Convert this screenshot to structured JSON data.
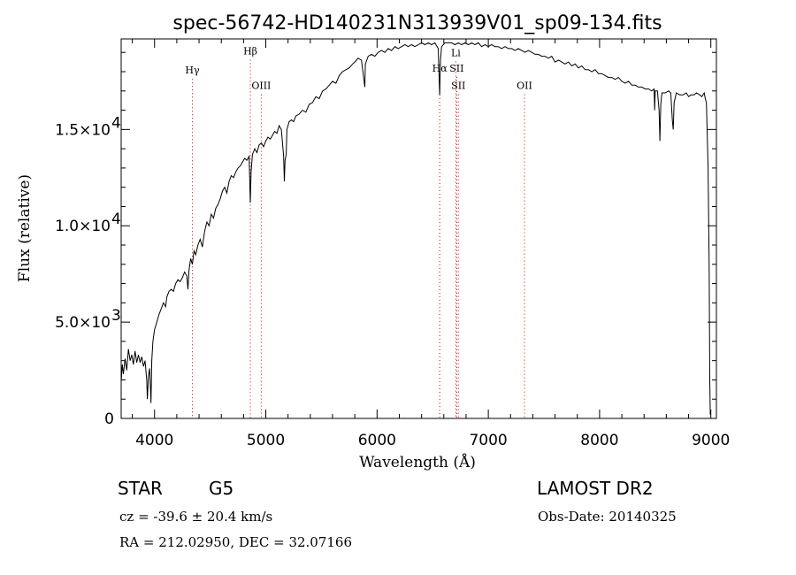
{
  "chart_data": {
    "type": "line",
    "title": "spec-56742-HD140231N313939V01_sp09-134.fits",
    "xlabel": "Wavelength (Å)",
    "ylabel": "Flux (relative)",
    "xlim": [
      3700,
      9050
    ],
    "ylim": [
      0,
      19700
    ],
    "xticks": [
      {
        "value": 4000,
        "label": "4000"
      },
      {
        "value": 5000,
        "label": "5000"
      },
      {
        "value": 6000,
        "label": "6000"
      },
      {
        "value": 7000,
        "label": "7000"
      },
      {
        "value": 8000,
        "label": "8000"
      },
      {
        "value": 9000,
        "label": "9000"
      }
    ],
    "yticks": [
      {
        "value": 0,
        "mantissa": "0",
        "exponent": ""
      },
      {
        "value": 5000,
        "mantissa": "5.0×10",
        "exponent": "3"
      },
      {
        "value": 10000,
        "mantissa": "1.0×10",
        "exponent": "4"
      },
      {
        "value": 15000,
        "mantissa": "1.5×10",
        "exponent": "4"
      }
    ],
    "spectral_lines": [
      {
        "label": "Hγ",
        "wavelength": 4340,
        "level": 17900,
        "color": "#cc0000"
      },
      {
        "label": "Hβ",
        "wavelength": 4861,
        "level": 18900,
        "color": "#cc0000"
      },
      {
        "label": "OIII",
        "wavelength": 4959,
        "level": 17100,
        "color": "#cc0000"
      },
      {
        "label": "Hα",
        "wavelength": 6563,
        "level": 18000,
        "color": "#cc0000"
      },
      {
        "label": "Li",
        "wavelength": 6708,
        "level": 18800,
        "color": "#cc0000"
      },
      {
        "label": "SII",
        "wavelength": 6716,
        "level": 18000,
        "color": "#cc0000"
      },
      {
        "label": "SII",
        "wavelength": 6731,
        "level": 17100,
        "color": "#cc0000"
      },
      {
        "label": "OII",
        "wavelength": 7325,
        "level": 17100,
        "color": "#cc0000"
      }
    ],
    "series": [
      {
        "points": [
          [
            3700,
            1900
          ],
          [
            3710,
            2800
          ],
          [
            3720,
            2300
          ],
          [
            3735,
            3100
          ],
          [
            3750,
            2500
          ],
          [
            3765,
            3600
          ],
          [
            3780,
            3000
          ],
          [
            3795,
            3300
          ],
          [
            3810,
            2800
          ],
          [
            3825,
            3500
          ],
          [
            3840,
            2900
          ],
          [
            3855,
            3300
          ],
          [
            3870,
            2900
          ],
          [
            3885,
            3200
          ],
          [
            3900,
            2700
          ],
          [
            3915,
            3000
          ],
          [
            3930,
            2000
          ],
          [
            3935,
            1000
          ],
          [
            3945,
            2200
          ],
          [
            3955,
            2600
          ],
          [
            3965,
            1400
          ],
          [
            3968,
            800
          ],
          [
            3975,
            3000
          ],
          [
            3985,
            4000
          ],
          [
            4000,
            4600
          ],
          [
            4020,
            5000
          ],
          [
            4040,
            5400
          ],
          [
            4060,
            5700
          ],
          [
            4080,
            6000
          ],
          [
            4100,
            5800
          ],
          [
            4110,
            6300
          ],
          [
            4130,
            6600
          ],
          [
            4150,
            6700
          ],
          [
            4170,
            6600
          ],
          [
            4190,
            7000
          ],
          [
            4210,
            7200
          ],
          [
            4230,
            7100
          ],
          [
            4250,
            7300
          ],
          [
            4270,
            7600
          ],
          [
            4290,
            7400
          ],
          [
            4300,
            6700
          ],
          [
            4310,
            7700
          ],
          [
            4325,
            8300
          ],
          [
            4340,
            8000
          ],
          [
            4355,
            8700
          ],
          [
            4370,
            8500
          ],
          [
            4390,
            9000
          ],
          [
            4410,
            9300
          ],
          [
            4430,
            8900
          ],
          [
            4450,
            9700
          ],
          [
            4470,
            10200
          ],
          [
            4490,
            10000
          ],
          [
            4510,
            10600
          ],
          [
            4530,
            10400
          ],
          [
            4550,
            10900
          ],
          [
            4570,
            11100
          ],
          [
            4590,
            11400
          ],
          [
            4610,
            11800
          ],
          [
            4630,
            12000
          ],
          [
            4650,
            11700
          ],
          [
            4670,
            12300
          ],
          [
            4690,
            12600
          ],
          [
            4710,
            12500
          ],
          [
            4730,
            12800
          ],
          [
            4750,
            13000
          ],
          [
            4770,
            13100
          ],
          [
            4790,
            13300
          ],
          [
            4810,
            13500
          ],
          [
            4830,
            13400
          ],
          [
            4850,
            13600
          ],
          [
            4855,
            12500
          ],
          [
            4861,
            11200
          ],
          [
            4868,
            12800
          ],
          [
            4880,
            13700
          ],
          [
            4900,
            14000
          ],
          [
            4920,
            13800
          ],
          [
            4940,
            14200
          ],
          [
            4960,
            14300
          ],
          [
            4980,
            14100
          ],
          [
            5000,
            14400
          ],
          [
            5020,
            14600
          ],
          [
            5040,
            14500
          ],
          [
            5060,
            14700
          ],
          [
            5080,
            14900
          ],
          [
            5100,
            14800
          ],
          [
            5120,
            15200
          ],
          [
            5140,
            15000
          ],
          [
            5160,
            13600
          ],
          [
            5167,
            12300
          ],
          [
            5173,
            13400
          ],
          [
            5183,
            13700
          ],
          [
            5190,
            15000
          ],
          [
            5210,
            15400
          ],
          [
            5230,
            15500
          ],
          [
            5250,
            15400
          ],
          [
            5270,
            15700
          ],
          [
            5300,
            15800
          ],
          [
            5330,
            16000
          ],
          [
            5360,
            15900
          ],
          [
            5390,
            16300
          ],
          [
            5420,
            16400
          ],
          [
            5450,
            16700
          ],
          [
            5480,
            16600
          ],
          [
            5510,
            17000
          ],
          [
            5540,
            17100
          ],
          [
            5570,
            17300
          ],
          [
            5600,
            17500
          ],
          [
            5630,
            17400
          ],
          [
            5660,
            17800
          ],
          [
            5690,
            18000
          ],
          [
            5720,
            18100
          ],
          [
            5750,
            18200
          ],
          [
            5780,
            18400
          ],
          [
            5800,
            18500
          ],
          [
            5830,
            18700
          ],
          [
            5860,
            18600
          ],
          [
            5890,
            17200
          ],
          [
            5895,
            18400
          ],
          [
            5920,
            18800
          ],
          [
            5950,
            18900
          ],
          [
            5980,
            18800
          ],
          [
            6010,
            19000
          ],
          [
            6040,
            19100
          ],
          [
            6070,
            19000
          ],
          [
            6100,
            19200
          ],
          [
            6130,
            19100
          ],
          [
            6160,
            19300
          ],
          [
            6190,
            19200
          ],
          [
            6220,
            19300
          ],
          [
            6250,
            19400
          ],
          [
            6280,
            19300
          ],
          [
            6310,
            19400
          ],
          [
            6340,
            19300
          ],
          [
            6370,
            19400
          ],
          [
            6400,
            19500
          ],
          [
            6430,
            19400
          ],
          [
            6460,
            19500
          ],
          [
            6490,
            19400
          ],
          [
            6520,
            19500
          ],
          [
            6550,
            19200
          ],
          [
            6556,
            18000
          ],
          [
            6563,
            16800
          ],
          [
            6570,
            18600
          ],
          [
            6580,
            19300
          ],
          [
            6610,
            19500
          ],
          [
            6640,
            19500
          ],
          [
            6670,
            19500
          ],
          [
            6700,
            19400
          ],
          [
            6730,
            19500
          ],
          [
            6760,
            19400
          ],
          [
            6790,
            19500
          ],
          [
            6820,
            19400
          ],
          [
            6850,
            19500
          ],
          [
            6880,
            19400
          ],
          [
            6910,
            19500
          ],
          [
            6940,
            19300
          ],
          [
            6970,
            19400
          ],
          [
            7000,
            19300
          ],
          [
            7030,
            19400
          ],
          [
            7060,
            19300
          ],
          [
            7090,
            19300
          ],
          [
            7120,
            19200
          ],
          [
            7150,
            19300
          ],
          [
            7180,
            19200
          ],
          [
            7210,
            19200
          ],
          [
            7240,
            19100
          ],
          [
            7270,
            19200
          ],
          [
            7300,
            19100
          ],
          [
            7330,
            19000
          ],
          [
            7360,
            19100
          ],
          [
            7390,
            19000
          ],
          [
            7420,
            18900
          ],
          [
            7450,
            18900
          ],
          [
            7480,
            18800
          ],
          [
            7510,
            18800
          ],
          [
            7540,
            18700
          ],
          [
            7570,
            18800
          ],
          [
            7600,
            18500
          ],
          [
            7630,
            18600
          ],
          [
            7660,
            18500
          ],
          [
            7690,
            18400
          ],
          [
            7720,
            18500
          ],
          [
            7750,
            18300
          ],
          [
            7780,
            18400
          ],
          [
            7810,
            18200
          ],
          [
            7840,
            18300
          ],
          [
            7870,
            18100
          ],
          [
            7900,
            18100
          ],
          [
            7930,
            18000
          ],
          [
            7960,
            18100
          ],
          [
            7990,
            17900
          ],
          [
            8020,
            17900
          ],
          [
            8050,
            17800
          ],
          [
            8080,
            17700
          ],
          [
            8110,
            17700
          ],
          [
            8140,
            17600
          ],
          [
            8170,
            17700
          ],
          [
            8200,
            17500
          ],
          [
            8230,
            17400
          ],
          [
            8260,
            17500
          ],
          [
            8290,
            17300
          ],
          [
            8320,
            17300
          ],
          [
            8350,
            17200
          ],
          [
            8380,
            17200
          ],
          [
            8410,
            17100
          ],
          [
            8440,
            17100
          ],
          [
            8470,
            17000
          ],
          [
            8490,
            17100
          ],
          [
            8495,
            16000
          ],
          [
            8500,
            17000
          ],
          [
            8520,
            17000
          ],
          [
            8535,
            16000
          ],
          [
            8542,
            14400
          ],
          [
            8550,
            16300
          ],
          [
            8560,
            16900
          ],
          [
            8590,
            16900
          ],
          [
            8620,
            17000
          ],
          [
            8640,
            16900
          ],
          [
            8655,
            15400
          ],
          [
            8662,
            15000
          ],
          [
            8670,
            16400
          ],
          [
            8690,
            16900
          ],
          [
            8720,
            16800
          ],
          [
            8750,
            16800
          ],
          [
            8780,
            16900
          ],
          [
            8800,
            16700
          ],
          [
            8820,
            16800
          ],
          [
            8850,
            16800
          ],
          [
            8870,
            16900
          ],
          [
            8900,
            16800
          ],
          [
            8920,
            16700
          ],
          [
            8940,
            16900
          ],
          [
            8950,
            16600
          ],
          [
            8960,
            16400
          ],
          [
            8975,
            13000
          ],
          [
            8985,
            8000
          ],
          [
            8990,
            2000
          ],
          [
            8995,
            200
          ]
        ]
      }
    ]
  },
  "footer": {
    "object_class": "STAR",
    "subclass": "G5",
    "cz": "cz = -39.6 ± 20.4 km/s",
    "coords": "RA = 212.02950, DEC =  32.07166",
    "survey": "LAMOST DR2",
    "obs_date": "Obs-Date: 20140325"
  }
}
